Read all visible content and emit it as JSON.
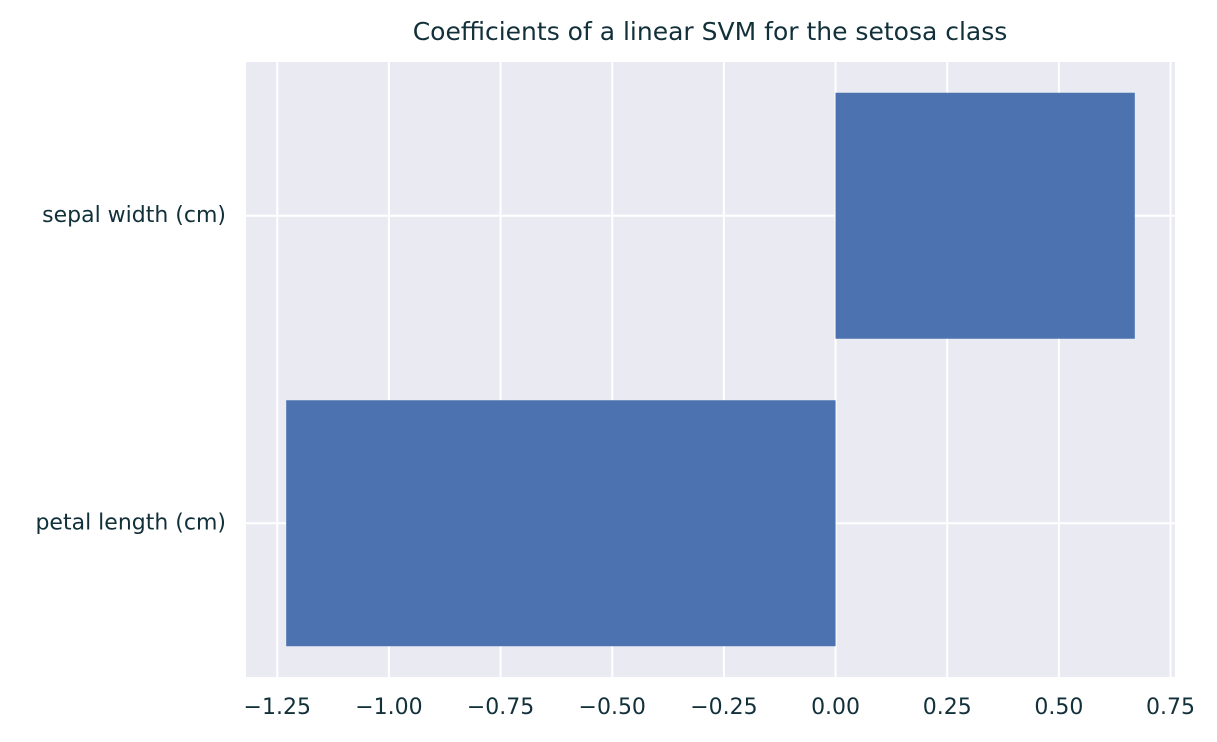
{
  "chart_data": {
    "type": "barh",
    "title": "Coefficients of a linear SVM for the setosa class",
    "categories": [
      "sepal width (cm)",
      "petal length (cm)"
    ],
    "values": [
      0.67,
      -1.23
    ],
    "color": "#4c72b0",
    "xlim": [
      -1.32,
      0.76
    ],
    "xticks": [
      {
        "value": -1.25,
        "label": "−1.25"
      },
      {
        "value": -1.0,
        "label": "−1.00"
      },
      {
        "value": -0.75,
        "label": "−0.75"
      },
      {
        "value": -0.5,
        "label": "−0.50"
      },
      {
        "value": -0.25,
        "label": "−0.25"
      },
      {
        "value": 0,
        "label": "0.00"
      },
      0.25,
      {
        "value": 0.5,
        "label": "0.50"
      },
      0.75
    ],
    "grid": true
  }
}
